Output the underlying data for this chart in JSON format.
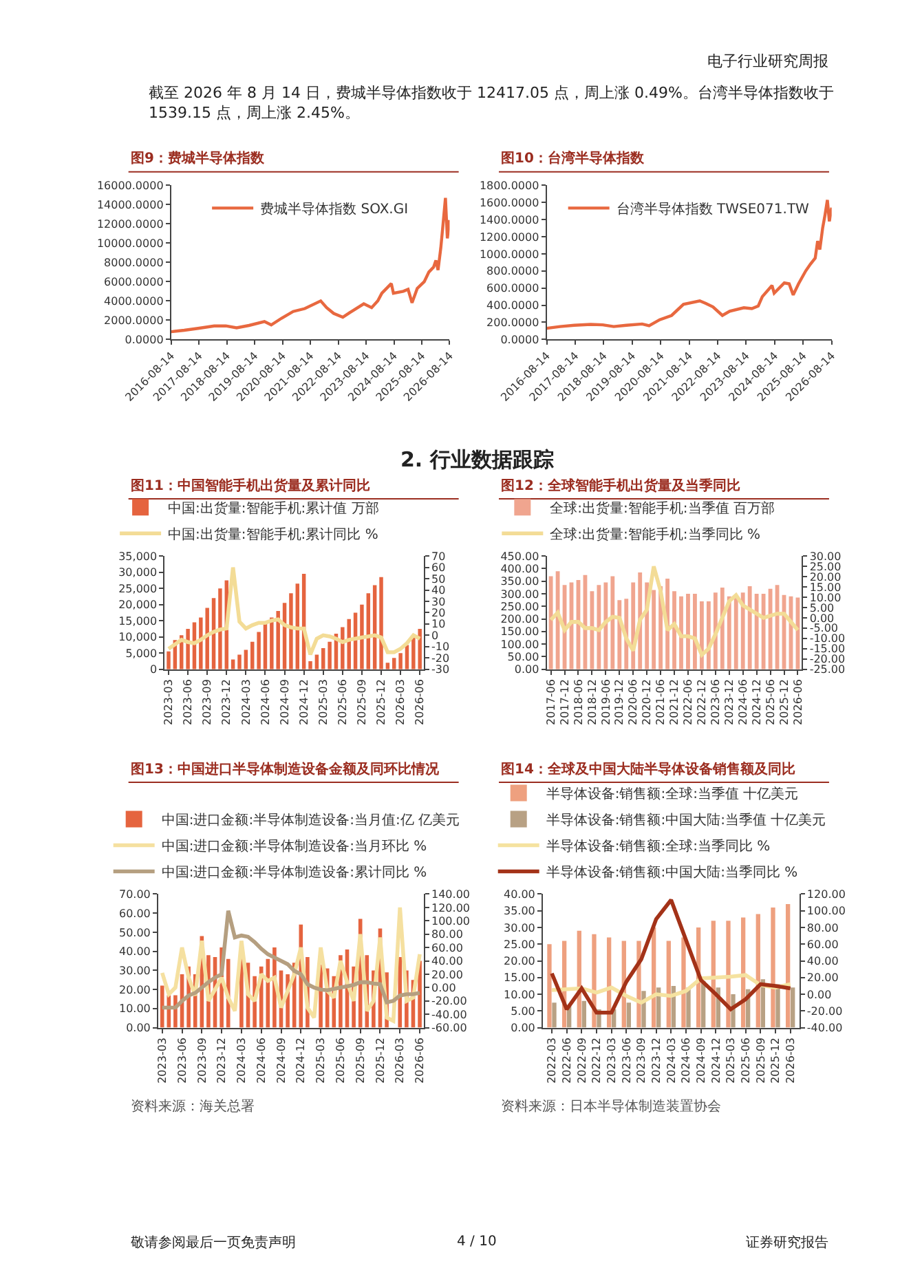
{
  "chart_data": [
    {
      "type": "line",
      "title": "图9：费城半导体指数",
      "annotations": [
        "电子行业研究周报",
        "截至 2026 年 8 月 14 日，费城半导体指数收于 12417.05 点，周上涨 0.49%。台湾半导体指数收于 1539.15 点，周上涨 2.45%。",
        "2. 行业数据跟踪",
        "敬请参阅最后一页免责声明",
        "4 / 10",
        "证券研究报告"
      ],
      "x": [
        "2016-08-14",
        "2017-02-01",
        "2017-08-01",
        "2018-03-01",
        "2018-08-01",
        "2018-12-20",
        "2019-06-01",
        "2019-12-20",
        "2020-03-18",
        "2020-08-01",
        "2020-12-31",
        "2021-06-01",
        "2021-12-27",
        "2022-03-15",
        "2022-06-15",
        "2022-10-13",
        "2023-01-15",
        "2023-07-15",
        "2023-10-26",
        "2024-01-15",
        "2024-03-08",
        "2024-07-10",
        "2024-08-07",
        "2024-12-15",
        "2025-02-15",
        "2025-04-08",
        "2025-06-15",
        "2025-09-15",
        "2025-11-15",
        "2026-01-15",
        "2026-02-15",
        "2026-03-15",
        "2026-04-20",
        "2026-05-20",
        "2026-06-20",
        "2026-07-15",
        "2026-08-14"
      ],
      "series": [
        {
          "name": "费城半导体指数 SOX.GI",
          "color": "#e8683f",
          "values": [
            800,
            950,
            1150,
            1400,
            1400,
            1200,
            1450,
            1850,
            1500,
            2200,
            2900,
            3200,
            4000,
            3300,
            2700,
            2300,
            2800,
            3700,
            3300,
            4000,
            4800,
            5800,
            4800,
            5000,
            5200,
            3800,
            5300,
            6000,
            7000,
            7500,
            8200,
            7200,
            9500,
            12000,
            14700,
            10500,
            12400
          ]
        }
      ],
      "xlim": [
        "2016-08-14",
        "2026-08-14"
      ],
      "xticks": [
        "2016-08-14",
        "2017-08-14",
        "2018-08-14",
        "2019-08-14",
        "2020-08-14",
        "2021-08-14",
        "2022-08-14",
        "2023-08-14",
        "2024-08-14",
        "2025-08-14",
        "2026-08-14"
      ],
      "ylim": [
        0,
        16000
      ],
      "yticks": [
        {
          "value": 0,
          "label": "0.0000"
        },
        {
          "value": 2000,
          "label": "2000.0000"
        },
        {
          "value": 4000,
          "label": "4000.0000"
        },
        {
          "value": 6000,
          "label": "6000.0000"
        },
        {
          "value": 8000,
          "label": "8000.0000"
        },
        {
          "value": 10000,
          "label": "10000.0000"
        },
        {
          "value": 12000,
          "label": "12000.0000"
        },
        {
          "value": 14000,
          "label": "14000.0000"
        },
        {
          "value": 16000,
          "label": "16000.0000"
        }
      ],
      "legend": "top"
    },
    {
      "type": "line",
      "title": "图10：台湾半导体指数",
      "x": [
        "2016-08-14",
        "2017-02-01",
        "2017-08-01",
        "2018-03-01",
        "2018-08-01",
        "2018-12-20",
        "2019-06-01",
        "2019-12-20",
        "2020-03-18",
        "2020-08-01",
        "2020-12-31",
        "2021-06-01",
        "2021-12-27",
        "2022-03-15",
        "2022-06-15",
        "2022-10-13",
        "2023-01-15",
        "2023-07-15",
        "2023-10-26",
        "2024-01-15",
        "2024-03-08",
        "2024-07-10",
        "2024-08-07",
        "2024-12-15",
        "2025-02-15",
        "2025-04-08",
        "2025-06-15",
        "2025-09-15",
        "2025-11-15",
        "2026-01-15",
        "2026-02-15",
        "2026-03-15",
        "2026-04-20",
        "2026-05-20",
        "2026-06-20",
        "2026-07-15",
        "2026-08-14"
      ],
      "series": [
        {
          "name": "台湾半导体指数 TWSE071.TW",
          "color": "#e8683f",
          "values": [
            130,
            150,
            165,
            175,
            170,
            150,
            165,
            180,
            160,
            230,
            280,
            410,
            450,
            420,
            380,
            280,
            330,
            370,
            360,
            390,
            500,
            630,
            540,
            660,
            650,
            520,
            650,
            800,
            880,
            950,
            1150,
            1050,
            1300,
            1450,
            1630,
            1380,
            1540
          ]
        }
      ],
      "xlim": [
        "2016-08-14",
        "2026-08-14"
      ],
      "xticks": [
        "2016-08-14",
        "2017-08-14",
        "2018-08-14",
        "2019-08-14",
        "2020-08-14",
        "2021-08-14",
        "2022-08-14",
        "2023-08-14",
        "2024-08-14",
        "2025-08-14",
        "2026-08-14"
      ],
      "ylim": [
        0,
        1800
      ],
      "yticks": [
        {
          "value": 0,
          "label": "0.0000"
        },
        {
          "value": 200,
          "label": "200.0000"
        },
        {
          "value": 400,
          "label": "400.0000"
        },
        {
          "value": 600,
          "label": "600.0000"
        },
        {
          "value": 800,
          "label": "800.0000"
        },
        {
          "value": 1000,
          "label": "1000.0000"
        },
        {
          "value": 1200,
          "label": "1200.0000"
        },
        {
          "value": 1400,
          "label": "1400.0000"
        },
        {
          "value": 1600,
          "label": "1600.0000"
        },
        {
          "value": 1800,
          "label": "1800.0000"
        }
      ],
      "legend": "top"
    },
    {
      "type": "bar",
      "title": "图11：中国智能手机出货量及累计同比",
      "categories": [
        "2023-03",
        null,
        null,
        "2023-06",
        null,
        null,
        "2023-09",
        null,
        null,
        "2023-12",
        null,
        null,
        "2024-03",
        null,
        null,
        "2024-06",
        null,
        null,
        "2024-09",
        null,
        null,
        "2024-12",
        null,
        null,
        "2025-03",
        null,
        null,
        "2025-06",
        null,
        null,
        "2025-09",
        null,
        null,
        "2025-12",
        null,
        null,
        "2026-03",
        null,
        null,
        "2026-06"
      ],
      "series": [
        {
          "name": "中国:出货量:智能手机:累计值 万部",
          "color": "#e5643f",
          "values": [
            5500,
            9000,
            10500,
            12500,
            14500,
            16000,
            19000,
            22000,
            25000,
            27500,
            3000,
            4500,
            6000,
            8500,
            11500,
            14000,
            16000,
            18000,
            20500,
            23500,
            26500,
            29500,
            2500,
            4500,
            6500,
            8500,
            11000,
            13000,
            15500,
            17500,
            20000,
            23500,
            26000,
            28500,
            2000,
            3500,
            5000,
            7500,
            10000,
            12500
          ]
        },
        {
          "name": "中国:出货量:智能手机:累计同比 %",
          "type": "line",
          "axis": "y2",
          "color": "#f3dc96",
          "values": [
            -12,
            -8,
            -4,
            -6,
            -7,
            -4,
            0,
            3,
            5,
            6,
            60,
            12,
            6,
            9,
            11,
            11,
            13,
            14,
            9,
            7,
            6,
            6,
            -17,
            -3,
            0,
            -1,
            -3,
            -6,
            -4,
            -3,
            -2,
            -1,
            0,
            -2,
            -15,
            -15,
            -12,
            -7,
            0,
            -3
          ]
        }
      ],
      "ylim": [
        0,
        35000
      ],
      "yticks": [
        0,
        {
          "value": 5000,
          "label": "5,000"
        },
        {
          "value": 10000,
          "label": "10,000"
        },
        {
          "value": 15000,
          "label": "15,000"
        },
        {
          "value": 20000,
          "label": "20,000"
        },
        {
          "value": 25000,
          "label": "25,000"
        },
        {
          "value": 30000,
          "label": "30,000"
        },
        {
          "value": 35000,
          "label": "35,000"
        }
      ],
      "y2lim": [
        -30,
        70
      ],
      "y2ticks": [
        -30,
        -20,
        -10,
        0,
        10,
        20,
        30,
        40,
        50,
        60,
        70
      ],
      "legend": "top"
    },
    {
      "type": "bar",
      "title": "图12：全球智能手机出货量及当季同比",
      "categories": [
        "2017-06",
        null,
        "2017-12",
        null,
        "2018-06",
        null,
        "2018-12",
        null,
        "2019-06",
        null,
        "2019-12",
        null,
        "2020-06",
        null,
        "2020-12",
        null,
        "2021-06",
        null,
        "2021-12",
        null,
        "2022-06",
        null,
        "2022-12",
        null,
        "2023-06",
        null,
        "2023-12",
        null,
        "2024-06",
        null,
        "2024-12",
        null,
        "2025-06",
        null,
        "2025-12",
        null,
        "2026-06"
      ],
      "series": [
        {
          "name": "全球:出货量:智能手机:当季值 百万部",
          "color": "#f0a58f",
          "values": [
            370,
            390,
            335,
            345,
            355,
            375,
            310,
            335,
            345,
            370,
            275,
            280,
            345,
            385,
            345,
            315,
            330,
            360,
            310,
            290,
            300,
            300,
            270,
            270,
            305,
            325,
            290,
            290,
            305,
            330,
            300,
            300,
            320,
            335,
            295,
            290,
            285
          ]
        },
        {
          "name": "全球:出货量:智能手机:当季同比 %",
          "type": "line",
          "axis": "y2",
          "color": "#f3dc96",
          "values": [
            -1,
            2.5,
            -6,
            -2,
            -2,
            -5,
            -5,
            -6,
            -2,
            0.5,
            0,
            -10,
            -16,
            -1,
            4,
            25,
            13,
            -6,
            -3,
            -9,
            -9,
            -10,
            -18,
            -15,
            -8,
            0,
            8,
            11,
            6,
            4,
            2,
            0,
            1,
            2,
            2,
            -2,
            -6
          ]
        }
      ],
      "ylim": [
        0,
        450
      ],
      "yticks": [
        {
          "value": 0,
          "label": "0.00"
        },
        {
          "value": 50,
          "label": "50.00"
        },
        {
          "value": 100,
          "label": "100.00"
        },
        {
          "value": 150,
          "label": "150.00"
        },
        {
          "value": 200,
          "label": "200.00"
        },
        {
          "value": 250,
          "label": "250.00"
        },
        {
          "value": 300,
          "label": "300.00"
        },
        {
          "value": 350,
          "label": "350.00"
        },
        {
          "value": 400,
          "label": "400.00"
        },
        {
          "value": 450,
          "label": "450.00"
        }
      ],
      "y2lim": [
        -25,
        30
      ],
      "y2ticks": [
        {
          "value": -25,
          "label": "-25.00"
        },
        {
          "value": -20,
          "label": "-20.00"
        },
        {
          "value": -15,
          "label": "-15.00"
        },
        {
          "value": -10,
          "label": "-10.00"
        },
        {
          "value": -5,
          "label": "-5.00"
        },
        {
          "value": 0,
          "label": "0.00"
        },
        {
          "value": 5,
          "label": "5.00"
        },
        {
          "value": 10,
          "label": "10.00"
        },
        {
          "value": 15,
          "label": "15.00"
        },
        {
          "value": 20,
          "label": "20.00"
        },
        {
          "value": 25,
          "label": "25.00"
        },
        {
          "value": 30,
          "label": "30.00"
        }
      ],
      "legend": "top"
    },
    {
      "type": "bar",
      "title": "图13：中国进口半导体制造设备金额及同环比情况",
      "annotations": [
        "资料来源：海关总署"
      ],
      "categories": [
        "2023-03",
        null,
        null,
        "2023-06",
        null,
        null,
        "2023-09",
        null,
        null,
        "2023-12",
        null,
        null,
        "2024-03",
        null,
        null,
        "2024-06",
        null,
        null,
        "2024-09",
        null,
        null,
        "2024-12",
        null,
        null,
        "2025-03",
        null,
        null,
        "2025-06",
        null,
        null,
        "2025-09",
        null,
        null,
        "2025-12",
        null,
        null,
        "2026-03",
        null,
        null,
        "2026-06"
      ],
      "series": [
        {
          "name": "中国:进口金额:半导体制造设备:当月值:亿 亿美元",
          "color": "#e5643f",
          "values": [
            22,
            17,
            17,
            28,
            32,
            28,
            48,
            38,
            37,
            42,
            36,
            null,
            37,
            34,
            27,
            32,
            36,
            42,
            30,
            28,
            34,
            54,
            37,
            null,
            33,
            31,
            27,
            38,
            41,
            32,
            57,
            38,
            30,
            52,
            29,
            null,
            37,
            30,
            25,
            35
          ]
        },
        {
          "name": "中国:进口金额:半导体制造设备:当月环比 %",
          "type": "line",
          "axis": "y2",
          "color": "#f5e0a0",
          "values": [
            22,
            -10,
            0,
            60,
            15,
            -12,
            70,
            -20,
            -3,
            15,
            -15,
            -35,
            70,
            -10,
            -20,
            20,
            10,
            15,
            -30,
            -5,
            20,
            60,
            -30,
            -45,
            60,
            -5,
            -15,
            40,
            8,
            -20,
            80,
            -35,
            -20,
            75,
            -45,
            -50,
            120,
            -20,
            -15,
            50
          ]
        },
        {
          "name": "中国:进口金额:半导体制造设备:累计同比 %",
          "type": "line",
          "axis": "y2",
          "color": "#b59f80",
          "values": [
            -30,
            -30,
            -30,
            -20,
            -12,
            -8,
            0,
            8,
            15,
            20,
            115,
            75,
            78,
            76,
            68,
            58,
            50,
            45,
            40,
            35,
            25,
            20,
            5,
            0,
            -3,
            -4,
            -2,
            0,
            2,
            4,
            8,
            8,
            6,
            5,
            -22,
            -20,
            -12,
            -10,
            -10,
            -8
          ]
        }
      ],
      "ylim": [
        0,
        70
      ],
      "yticks": [
        {
          "value": 0,
          "label": "0.00"
        },
        {
          "value": 10,
          "label": "10.00"
        },
        {
          "value": 20,
          "label": "20.00"
        },
        {
          "value": 30,
          "label": "30.00"
        },
        {
          "value": 40,
          "label": "40.00"
        },
        {
          "value": 50,
          "label": "50.00"
        },
        {
          "value": 60,
          "label": "60.00"
        },
        {
          "value": 70,
          "label": "70.00"
        }
      ],
      "y2lim": [
        -60,
        140
      ],
      "y2ticks": [
        {
          "value": -60,
          "label": "-60.00"
        },
        {
          "value": -40,
          "label": "-40.00"
        },
        {
          "value": -20,
          "label": "-20.00"
        },
        {
          "value": 0,
          "label": "0.00"
        },
        {
          "value": 20,
          "label": "20.00"
        },
        {
          "value": 40,
          "label": "40.00"
        },
        {
          "value": 60,
          "label": "60.00"
        },
        {
          "value": 80,
          "label": "80.00"
        },
        {
          "value": 100,
          "label": "100.00"
        },
        {
          "value": 120,
          "label": "120.00"
        },
        {
          "value": 140,
          "label": "140.00"
        }
      ],
      "legend": "top"
    },
    {
      "type": "bar",
      "title": "图14：全球及中国大陆半导体设备销售额及同比",
      "annotations": [
        "资料来源：日本半导体制造装置协会"
      ],
      "categories": [
        "2022-03",
        "2022-06",
        "2022-09",
        "2022-12",
        "2023-03",
        "2023-06",
        "2023-09",
        "2023-12",
        "2024-03",
        "2024-06",
        "2024-09",
        "2024-12",
        "2025-03",
        "2025-06",
        "2025-09",
        "2025-12",
        "2026-03"
      ],
      "series": [
        {
          "name": "半导体设备:销售额:全球:当季值 十亿美元",
          "color": "#eea07f",
          "values": [
            25,
            26,
            29,
            28,
            27,
            26,
            26,
            30,
            26,
            27,
            30,
            32,
            32,
            33,
            34,
            36,
            37
          ]
        },
        {
          "name": "半导体设备:销售额:中国大陆:当季值 十亿美元",
          "color": "#b8a184",
          "values": [
            7.5,
            6.5,
            8,
            5.5,
            5.5,
            7.5,
            11,
            12,
            12.5,
            12,
            14,
            12,
            10,
            11.5,
            14.5,
            13,
            12
          ]
        },
        {
          "name": "半导体设备:销售额:全球:当季同比 %",
          "type": "line",
          "axis": "y2",
          "color": "#f5e2a0",
          "values": [
            5,
            6,
            7,
            2,
            8,
            -2,
            -10,
            0,
            -2,
            4,
            19,
            20,
            21,
            23,
            11,
            8,
            12
          ]
        },
        {
          "name": "半导体设备:销售额:中国大陆:当季同比 %",
          "type": "line",
          "axis": "y2",
          "color": "#a33218",
          "values": [
            25,
            -18,
            7,
            -22,
            -22,
            15,
            42,
            90,
            113,
            65,
            17,
            0,
            -18,
            -6,
            12,
            10,
            7
          ]
        }
      ],
      "ylim": [
        0,
        40
      ],
      "yticks": [
        {
          "value": 0,
          "label": "0.00"
        },
        {
          "value": 5,
          "label": "5.00"
        },
        {
          "value": 10,
          "label": "10.00"
        },
        {
          "value": 15,
          "label": "15.00"
        },
        {
          "value": 20,
          "label": "20.00"
        },
        {
          "value": 25,
          "label": "25.00"
        },
        {
          "value": 30,
          "label": "30.00"
        },
        {
          "value": 35,
          "label": "35.00"
        },
        {
          "value": 40,
          "label": "40.00"
        }
      ],
      "y2lim": [
        -40,
        120
      ],
      "y2ticks": [
        {
          "value": -40,
          "label": "-40.00"
        },
        {
          "value": -20,
          "label": "-20.00"
        },
        {
          "value": 0,
          "label": "0.00"
        },
        {
          "value": 20,
          "label": "20.00"
        },
        {
          "value": 40,
          "label": "40.00"
        },
        {
          "value": 60,
          "label": "60.00"
        },
        {
          "value": 80,
          "label": "80.00"
        },
        {
          "value": 100,
          "label": "100.00"
        },
        {
          "value": 120,
          "label": "120.00"
        }
      ],
      "legend": "top"
    }
  ]
}
